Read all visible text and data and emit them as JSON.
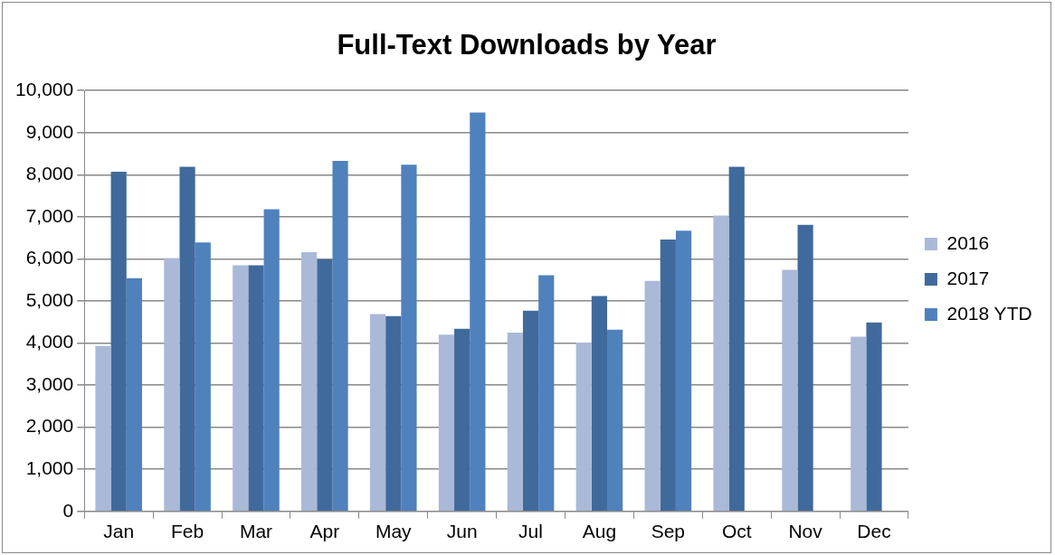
{
  "chart_data": {
    "type": "bar",
    "title": "Full-Text Downloads by Year",
    "categories": [
      "Jan",
      "Feb",
      "Mar",
      "Apr",
      "May",
      "Jun",
      "Jul",
      "Aug",
      "Sep",
      "Oct",
      "Nov",
      "Dec"
    ],
    "series": [
      {
        "name": "2016",
        "color": "#aab9d7",
        "values": [
          3930,
          6020,
          5850,
          6160,
          4690,
          4200,
          4250,
          4010,
          5480,
          7030,
          5740,
          4150
        ]
      },
      {
        "name": "2017",
        "color": "#416a9c",
        "values": [
          8070,
          8190,
          5850,
          5990,
          4640,
          4340,
          4770,
          5120,
          6460,
          8190,
          6810,
          4490
        ]
      },
      {
        "name": "2018 YTD",
        "color": "#4f81bd",
        "values": [
          5540,
          6390,
          7180,
          8330,
          8240,
          9480,
          5610,
          4320,
          6670,
          null,
          null,
          null
        ]
      }
    ],
    "ylim": [
      0,
      10000
    ],
    "yticks": [
      0,
      {
        "value": 1000,
        "label": "1,000"
      },
      {
        "value": 2000,
        "label": "2,000"
      },
      {
        "value": 3000,
        "label": "3,000"
      },
      {
        "value": 4000,
        "label": "4,000"
      },
      {
        "value": 5000,
        "label": "5,000"
      },
      {
        "value": 6000,
        "label": "6,000"
      },
      {
        "value": 7000,
        "label": "7,000"
      },
      {
        "value": 8000,
        "label": "8,000"
      },
      {
        "value": 9000,
        "label": "9,000"
      },
      {
        "value": 10000,
        "label": "10,000"
      }
    ],
    "grid": "y",
    "legend": "right"
  }
}
